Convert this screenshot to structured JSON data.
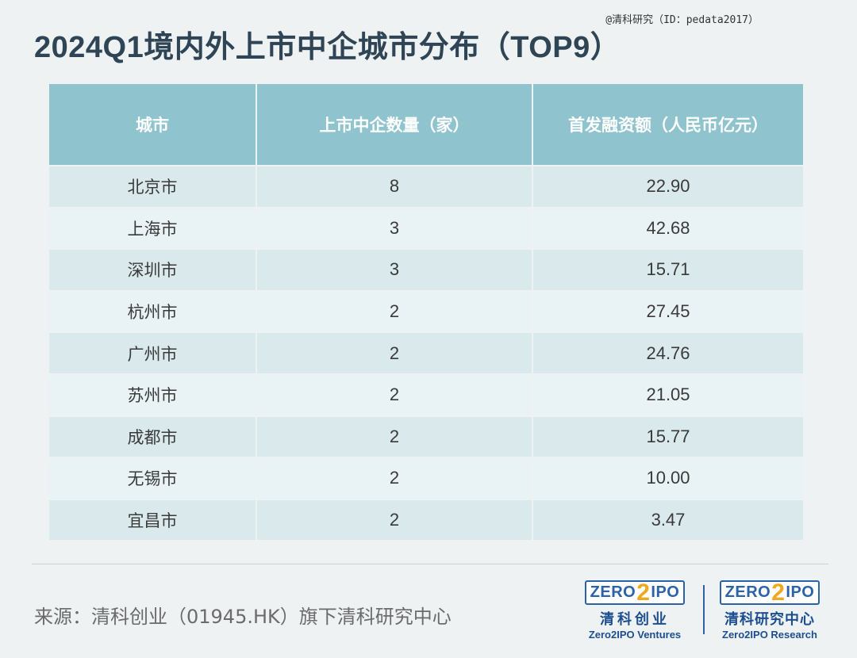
{
  "watermark": "@清科研究（ID：pedata2017）",
  "chart_data": {
    "type": "table",
    "title": "2024Q1境内外上市中企城市分布（TOP9）",
    "columns": [
      "城市",
      "上市中企数量（家）",
      "首发融资额（人民币亿元）"
    ],
    "rows": [
      [
        "北京市",
        "8",
        "22.90"
      ],
      [
        "上海市",
        "3",
        "42.68"
      ],
      [
        "深圳市",
        "3",
        "15.71"
      ],
      [
        "杭州市",
        "2",
        "27.45"
      ],
      [
        "广州市",
        "2",
        "24.76"
      ],
      [
        "苏州市",
        "2",
        "21.05"
      ],
      [
        "成都市",
        "2",
        "15.77"
      ],
      [
        "无锡市",
        "2",
        "10.00"
      ],
      [
        "宜昌市",
        "2",
        "3.47"
      ]
    ]
  },
  "footer": {
    "source": "来源：清科创业（01945.HK）旗下清科研究中心",
    "logo_left": {
      "mark_a": "ZERO",
      "mark_two": "2",
      "mark_b": "IPO",
      "cn": "清科创业",
      "en": "Zero2IPO Ventures"
    },
    "logo_right": {
      "mark_a": "ZERO",
      "mark_two": "2",
      "mark_b": "IPO",
      "cn": "清科研究中心",
      "en": "Zero2IPO Research"
    }
  },
  "colors": {
    "header": "#8fc4ce",
    "row_odd": "#d9e9ec",
    "row_even": "#e9f3f5",
    "title": "#2f4454",
    "logo": "#2b62a8"
  }
}
